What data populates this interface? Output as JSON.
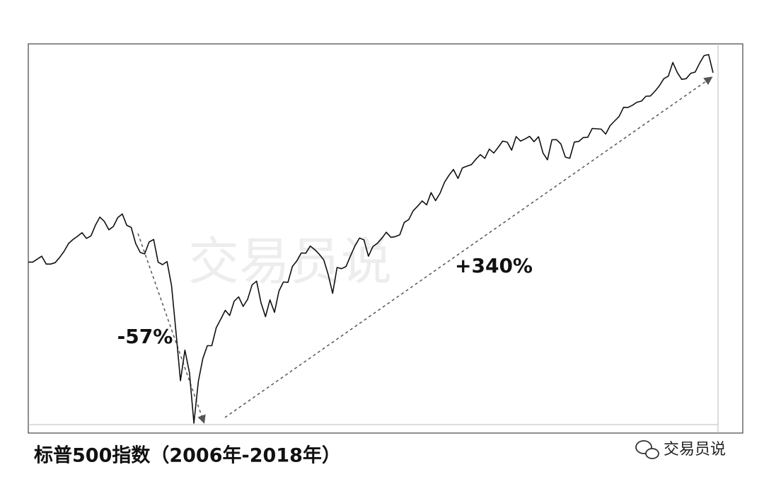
{
  "chart_data": {
    "type": "line",
    "log_scale": true,
    "color": "#111111",
    "values": [
      1280,
      1280,
      1295,
      1310,
      1270,
      1270,
      1277,
      1304,
      1336,
      1378,
      1400,
      1418,
      1438,
      1406,
      1420,
      1482,
      1530,
      1503,
      1455,
      1474,
      1527,
      1549,
      1481,
      1468,
      1378,
      1330,
      1322,
      1386,
      1400,
      1280,
      1267,
      1283,
      1166,
      969,
      800,
      903,
      826,
      676,
      798,
      873,
      919,
      919,
      987,
      1021,
      1057,
      1036,
      1096,
      1115,
      1074,
      1104,
      1169,
      1187,
      1089,
      1031,
      1102,
      1049,
      1141,
      1183,
      1181,
      1258,
      1286,
      1327,
      1326,
      1364,
      1345,
      1321,
      1292,
      1219,
      1131,
      1253,
      1247,
      1258,
      1312,
      1366,
      1408,
      1398,
      1310,
      1362,
      1379,
      1407,
      1441,
      1412,
      1416,
      1426,
      1498,
      1515,
      1569,
      1598,
      1631,
      1606,
      1686,
      1633,
      1682,
      1757,
      1806,
      1848,
      1783,
      1859,
      1872,
      1884,
      1924,
      1960,
      1931,
      2003,
      1972,
      2018,
      2068,
      2059,
      1995,
      2105,
      2068,
      2086,
      2107,
      2063,
      2104,
      1972,
      1920,
      2079,
      2080,
      2044,
      1940,
      1932,
      2060,
      2065,
      2097,
      2099,
      2174,
      2171,
      2168,
      2126,
      2199,
      2239,
      2279,
      2364,
      2363,
      2384,
      2412,
      2423,
      2470,
      2472,
      2519,
      2575,
      2648,
      2674,
      2824,
      2714,
      2641,
      2648,
      2705,
      2718,
      2816,
      2902,
      2914,
      2711
    ],
    "ylim": [
      650,
      3040
    ],
    "annotations": [
      "-57%",
      "+340%"
    ],
    "watermark": "交易员说",
    "caption": "标普500指数（2006年-2018年）",
    "logo": "交易员说"
  }
}
